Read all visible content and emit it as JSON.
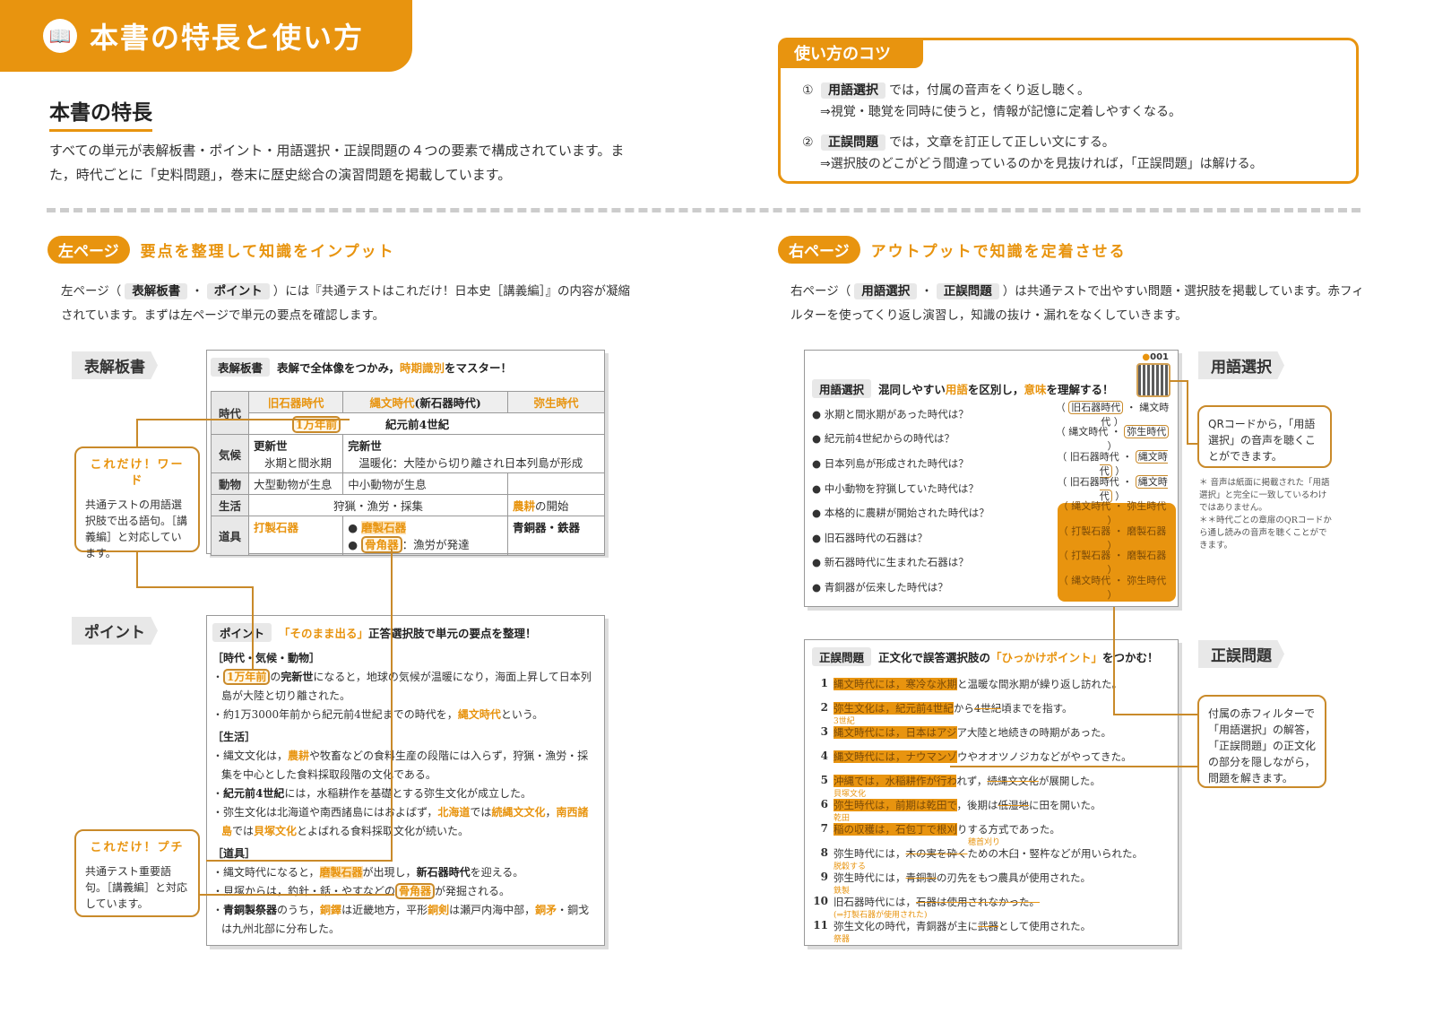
{
  "header": {
    "title": "本書の特長と使い方",
    "icon": "book-icon"
  },
  "features": {
    "heading": "本書の特長",
    "text": "すべての単元が表解板書・ポイント・用語選択・正誤問題の４つの要素で構成されています。また，時代ごとに「史料問題」，巻末に歴史総合の演習問題を掲載しています。"
  },
  "tips": {
    "title": "使い方のコツ",
    "items": [
      {
        "num": "①",
        "chip": "用語選択",
        "text": "では，付属の音声をくり返し聴く。",
        "sub": "⇒視覚・聴覚を同時に使うと，情報が記憶に定着しやすくなる。"
      },
      {
        "num": "②",
        "chip": "正誤問題",
        "text": "では，文章を訂正して正しい文にする。",
        "sub": "⇒選択肢のどこがどう間違っているのかを見抜ければ，「正誤問題」は解ける。"
      }
    ]
  },
  "left": {
    "badge": "左ページ",
    "title": "要点を整理して知識をインプット",
    "para": [
      {
        "t": "左ページ（"
      },
      {
        "t": "表解板書",
        "s": "chip"
      },
      {
        "t": "・"
      },
      {
        "t": "ポイント",
        "s": "chip"
      },
      {
        "t": "）には『共通テストはこれだけ！日本史［講義編］』の内容が凝縮されています。まずは左ページで単元の要点を確認します。"
      }
    ],
    "board_label": "表解板書",
    "point_label": "ポイント",
    "board": {
      "chip": "表解板書",
      "head": [
        {
          "t": "表解で全体像をつかみ，"
        },
        {
          "t": "時期識別",
          "s": "o"
        },
        {
          "t": "をマスター！"
        }
      ],
      "rows": {
        "era": "時代",
        "eras": [
          "旧石器時代",
          "縄文時代",
          "(新石器時代)",
          "弥生時代"
        ],
        "date1": "1万年前",
        "date2": "紀元前4世紀",
        "climate": "気候",
        "c1a": "更新世",
        "c1b": "氷期と間氷期",
        "c2a": "完新世",
        "c2b": "温暖化：大陸から切り離され日本列島が形成",
        "animal": "動物",
        "a1": "大型動物が生息",
        "a2": "中小動物が生息",
        "life": "生活",
        "l1": "狩猟・漁労・採集",
        "l2a": "農耕",
        "l2b": "の開始",
        "tool": "道具",
        "t1": "打製石器",
        "t2a": "磨製石器",
        "t2b": "骨角器",
        "t2c": "：漁労が発達",
        "t3": "青銅器・鉄器"
      }
    },
    "point": {
      "chip": "ポイント",
      "head": [
        {
          "t": "「そのまま出る」",
          "s": "o"
        },
        {
          "t": "正答選択肢で単元の要点を整理！"
        }
      ],
      "sections": [
        {
          "h": "［時代・気候・動物］",
          "items": [
            [
              {
                "t": "・"
              },
              {
                "t": "1万年前",
                "s": "box"
              },
              {
                "t": "の"
              },
              {
                "t": "完新世",
                "s": "b"
              },
              {
                "t": "になると，地球の気候が温暖になり，海面上昇して日本列島が大陸と切り離された。"
              }
            ],
            [
              {
                "t": "・約1万3000年前から紀元前4世紀までの時代を，"
              },
              {
                "t": "縄文時代",
                "s": "o"
              },
              {
                "t": "という。"
              }
            ]
          ]
        },
        {
          "h": "［生活］",
          "items": [
            [
              {
                "t": "・縄文文化は，"
              },
              {
                "t": "農耕",
                "s": "o"
              },
              {
                "t": "や牧畜などの食料生産の段階には入らず，狩猟・漁労・採集を中心とした食料採取段階の文化である。"
              }
            ],
            [
              {
                "t": "・"
              },
              {
                "t": "紀元前4世紀",
                "s": "b"
              },
              {
                "t": "には，水稲耕作を基礎とする弥生文化が成立した。"
              }
            ],
            [
              {
                "t": "・弥生文化は北海道や南西諸島にはおよばず，"
              },
              {
                "t": "北海道",
                "s": "o"
              },
              {
                "t": "では"
              },
              {
                "t": "続縄文文化",
                "s": "o"
              },
              {
                "t": "，"
              },
              {
                "t": "南西諸島",
                "s": "o"
              },
              {
                "t": "では"
              },
              {
                "t": "貝塚文化",
                "s": "o"
              },
              {
                "t": "とよばれる食料採取文化が続いた。"
              }
            ]
          ]
        },
        {
          "h": "［道具］",
          "items": [
            [
              {
                "t": "・縄文時代になると，"
              },
              {
                "t": "磨製石器",
                "s": "hl"
              },
              {
                "t": "が出現し，"
              },
              {
                "t": "新石器時代",
                "s": "b"
              },
              {
                "t": "を迎える。"
              }
            ],
            [
              {
                "t": "・貝塚からは，釣針・銛・やすなどの"
              },
              {
                "t": "骨角器",
                "s": "box"
              },
              {
                "t": "が発掘される。"
              }
            ],
            [
              {
                "t": "・"
              },
              {
                "t": "青銅製祭器",
                "s": "b"
              },
              {
                "t": "のうち，"
              },
              {
                "t": "銅鐸",
                "s": "o"
              },
              {
                "t": "は近畿地方，平形"
              },
              {
                "t": "銅剣",
                "s": "o"
              },
              {
                "t": "は瀬戸内海中部，"
              },
              {
                "t": "銅矛",
                "s": "o"
              },
              {
                "t": "・銅戈は九州北部に分布した。"
              }
            ]
          ]
        }
      ]
    },
    "callout_word": {
      "title": "これだけ！ワード",
      "text": "共通テストの用語選択肢で出る語句。［講義編］と対応しています。"
    },
    "callout_puchi": {
      "title": "これだけ！プチ",
      "text": "共通テスト重要語句。［講義編］と対応しています。"
    }
  },
  "right": {
    "badge": "右ページ",
    "title": "アウトプットで知識を定着させる",
    "para": [
      {
        "t": "右ページ（"
      },
      {
        "t": "用語選択",
        "s": "chip"
      },
      {
        "t": "・"
      },
      {
        "t": "正誤問題",
        "s": "chip"
      },
      {
        "t": "）は共通テストで出やすい問題・選択肢を掲載しています。赤フィルターを使ってくり返し演習し，知識の抜け・漏れをなくしていきます。"
      }
    ],
    "term_label": "用語選択",
    "tf_label": "正誤問題",
    "term": {
      "chip": "用語選択",
      "head": [
        {
          "t": "混同しやすい"
        },
        {
          "t": "用語",
          "s": "o"
        },
        {
          "t": "を区別し，"
        },
        {
          "t": "意味",
          "s": "o"
        },
        {
          "t": "を理解する！"
        }
      ],
      "qr_number": "001",
      "qr_icon": "qr-code-icon",
      "items": [
        {
          "q": "氷期と間氷期があった時代は？",
          "a": [
            "旧石器時代",
            "縄文時代"
          ],
          "sel": 0
        },
        {
          "q": "紀元前4世紀からの時代は？",
          "a": [
            "縄文時代",
            "弥生時代"
          ],
          "sel": 1
        },
        {
          "q": "日本列島が形成された時代は？",
          "a": [
            "旧石器時代",
            "縄文時代"
          ],
          "sel": 1
        },
        {
          "q": "中小動物を狩猟していた時代は？",
          "a": [
            "旧石器時代",
            "縄文時代"
          ],
          "sel": 1
        },
        {
          "q": "本格的に農耕が開始された時代は？",
          "a": [
            "縄文時代",
            "弥生時代"
          ],
          "sel": -1
        },
        {
          "q": "旧石器時代の石器は？",
          "a": [
            "打製石器",
            "磨製石器"
          ],
          "sel": -1
        },
        {
          "q": "新石器時代に生まれた石器は？",
          "a": [
            "打製石器",
            "磨製石器"
          ],
          "sel": -1
        },
        {
          "q": "青銅器が伝来した時代は？",
          "a": [
            "縄文時代",
            "弥生時代"
          ],
          "sel": -1
        }
      ]
    },
    "tf": {
      "chip": "正誤問題",
      "head": [
        {
          "t": "正文化で誤答選択肢の"
        },
        {
          "t": "「ひっかけポイント」",
          "s": "o"
        },
        {
          "t": "をつかむ！"
        }
      ],
      "items": [
        {
          "n": "1",
          "segs": [
            {
              "t": "縄文時代には，寒冷な氷期",
              "s": "cov"
            },
            {
              "t": "と温暖な間氷期が繰り返し訪れた。"
            }
          ]
        },
        {
          "n": "2",
          "segs": [
            {
              "t": "弥生文化は，紀元前4世紀",
              "s": "cov"
            },
            {
              "t": "から"
            },
            {
              "t": "4世紀",
              "s": "s"
            },
            {
              "t": "頃までを指す。"
            }
          ],
          "fix": "3世紀"
        },
        {
          "n": "3",
          "segs": [
            {
              "t": "縄文時代には，日本はアジ",
              "s": "cov"
            },
            {
              "t": "ア大陸と地続きの時期があった。"
            }
          ]
        },
        {
          "n": "4",
          "segs": [
            {
              "t": "縄文時代には，ナウマンゾ",
              "s": "cov"
            },
            {
              "t": "ウやオオツノジカなどがやってきた。"
            }
          ]
        },
        {
          "n": "5",
          "segs": [
            {
              "t": "沖縄では，水稲耕作が行わ",
              "s": "cov"
            },
            {
              "t": "れず，"
            },
            {
              "t": "続縄文文化",
              "s": "s"
            },
            {
              "t": "が展開した。"
            }
          ],
          "fix": "貝塚文化"
        },
        {
          "n": "6",
          "segs": [
            {
              "t": "弥生時代は，前期は乾田で",
              "s": "cov"
            },
            {
              "t": "，後期は"
            },
            {
              "t": "低湿地",
              "s": "s"
            },
            {
              "t": "に田を開いた。"
            }
          ],
          "fix": "乾田"
        },
        {
          "n": "7",
          "segs": [
            {
              "t": "稲の収穫は，石包丁で根刈",
              "s": "cov"
            },
            {
              "t": "りする方式であった。"
            }
          ],
          "fix": "穂首刈り"
        },
        {
          "n": "8",
          "segs": [
            {
              "t": "弥生時代には，"
            },
            {
              "t": "木の実を砕く",
              "s": "s"
            },
            {
              "t": "ための木臼・竪杵などが用いられた。"
            }
          ],
          "fix": "脱穀する"
        },
        {
          "n": "9",
          "segs": [
            {
              "t": "弥生時代には，"
            },
            {
              "t": "青銅製",
              "s": "s"
            },
            {
              "t": "の刃先をもつ農具が使用された。"
            }
          ],
          "fix": "鉄製"
        },
        {
          "n": "10",
          "segs": [
            {
              "t": "旧石器時代には，"
            },
            {
              "t": "石器は使用されなかった。",
              "s": "s"
            }
          ],
          "fix": "(⇒打製石器が使用された)"
        },
        {
          "n": "11",
          "segs": [
            {
              "t": "弥生文化の時代，青銅器が主に"
            },
            {
              "t": "武器",
              "s": "s"
            },
            {
              "t": "として使用された。"
            }
          ],
          "fix": "祭器"
        }
      ]
    },
    "callout_qr": "QRコードから，「用語選択」の音声を聴くことができます。",
    "notes": [
      "＊ 音声は紙面に掲載された「用語選択」と完全に一致しているわけではありません。",
      "＊＊時代ごとの章扉のQRコードから通し読みの音声を聴くことができます。"
    ],
    "callout_filter": "付属の赤フィルターで「用語選択」の解答，「正誤問題」の正文化の部分を隠しながら，問題を解きます。"
  },
  "colors": {
    "accent": "#e8940f",
    "chip": "#e8e8e8"
  }
}
